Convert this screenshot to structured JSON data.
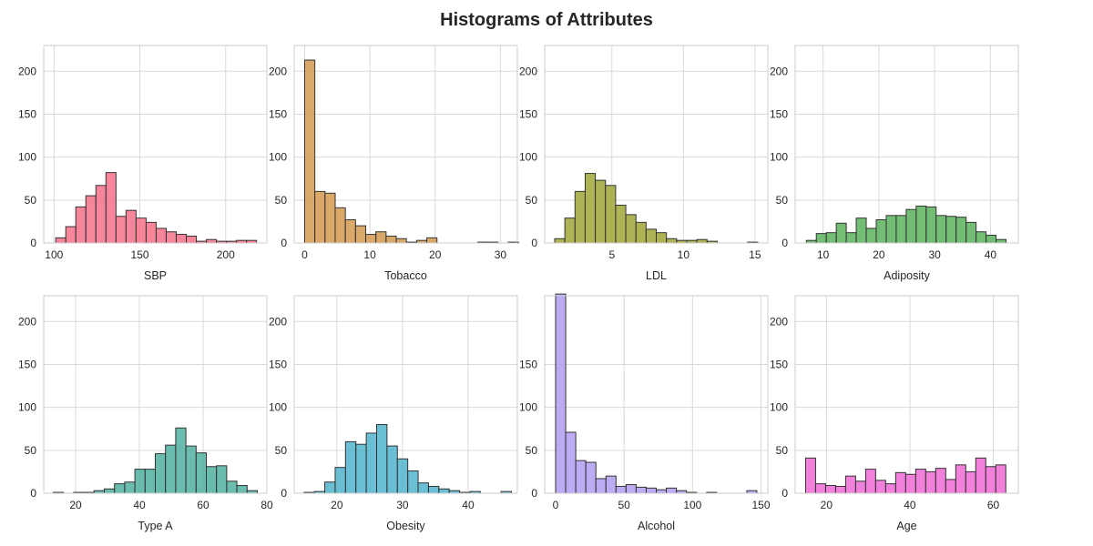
{
  "figure_title": "Histograms of Attributes",
  "chart_data": [
    {
      "type": "bar",
      "subtype": "histogram",
      "xlabel": "SBP",
      "color": "#f77189",
      "ylim": [
        0,
        230
      ],
      "yticks": [
        0,
        50,
        100,
        150,
        200
      ],
      "xlim": [
        94,
        224
      ],
      "xticks": [
        100,
        150,
        200
      ],
      "bin_start": 101,
      "bin_width": 5.85,
      "values": [
        6,
        19,
        42,
        55,
        67,
        82,
        31,
        38,
        29,
        24,
        17,
        13,
        10,
        8,
        2,
        4,
        2,
        2,
        3,
        3
      ],
      "grid": true
    },
    {
      "type": "bar",
      "subtype": "histogram",
      "xlabel": "Tobacco",
      "color": "#d39a4f",
      "ylim": [
        0,
        230
      ],
      "yticks": [
        0,
        50,
        100,
        150,
        200
      ],
      "xlim": [
        -1.6,
        32.6
      ],
      "xticks": [
        0,
        10,
        20,
        30
      ],
      "bin_start": 0,
      "bin_width": 1.56,
      "values": [
        213,
        60,
        58,
        41,
        27,
        20,
        10,
        13,
        8,
        5,
        1,
        3,
        6,
        0,
        0,
        0,
        0,
        1,
        1,
        0,
        1
      ],
      "grid": true
    },
    {
      "type": "bar",
      "subtype": "histogram",
      "xlabel": "LDL",
      "color": "#a0a737",
      "ylim": [
        0,
        230
      ],
      "yticks": [
        0,
        50,
        100,
        150,
        200
      ],
      "xlim": [
        0.3,
        15.9
      ],
      "xticks": [
        5,
        10,
        15
      ],
      "bin_start": 1,
      "bin_width": 0.71,
      "values": [
        5,
        29,
        60,
        81,
        73,
        67,
        44,
        33,
        24,
        16,
        12,
        5,
        3,
        3,
        4,
        2,
        0,
        0,
        0,
        1
      ],
      "grid": true
    },
    {
      "type": "bar",
      "subtype": "histogram",
      "xlabel": "Adiposity",
      "color": "#5bb25c",
      "ylim": [
        0,
        230
      ],
      "yticks": [
        0,
        50,
        100,
        150,
        200
      ],
      "xlim": [
        5,
        45
      ],
      "xticks": [
        10,
        20,
        30,
        40
      ],
      "bin_start": 7,
      "bin_width": 1.79,
      "values": [
        3,
        11,
        12,
        23,
        12,
        29,
        17,
        27,
        32,
        32,
        39,
        43,
        42,
        32,
        31,
        30,
        24,
        13,
        9,
        4
      ],
      "grid": true
    },
    {
      "type": "bar",
      "subtype": "histogram",
      "xlabel": "Type A",
      "color": "#4fb0a0",
      "ylim": [
        0,
        230
      ],
      "yticks": [
        0,
        50,
        100,
        150,
        200
      ],
      "xlim": [
        10,
        80
      ],
      "xticks": [
        20,
        40,
        60,
        80
      ],
      "bin_start": 13,
      "bin_width": 3.2,
      "values": [
        1,
        0,
        1,
        1,
        3,
        5,
        11,
        13,
        28,
        28,
        46,
        56,
        76,
        55,
        47,
        31,
        32,
        14,
        9,
        3
      ],
      "grid": true
    },
    {
      "type": "bar",
      "subtype": "histogram",
      "xlabel": "Obesity",
      "color": "#51b4cd",
      "ylim": [
        0,
        230
      ],
      "yticks": [
        0,
        50,
        100,
        150,
        200
      ],
      "xlim": [
        13.5,
        47.5
      ],
      "xticks": [
        20,
        30,
        40
      ],
      "bin_start": 15,
      "bin_width": 1.58,
      "values": [
        1,
        2,
        13,
        30,
        60,
        57,
        70,
        80,
        55,
        40,
        26,
        12,
        8,
        5,
        3,
        1,
        2,
        0,
        0,
        2
      ],
      "grid": true
    },
    {
      "type": "bar",
      "subtype": "histogram",
      "xlabel": "Alcohol",
      "color": "#b19ef2",
      "ylim": [
        0,
        230
      ],
      "yticks": [
        0,
        50,
        100,
        150
      ],
      "xlim": [
        -8,
        155
      ],
      "xticks": [
        0,
        50,
        100,
        150
      ],
      "bin_start": 0,
      "bin_width": 7.35,
      "values": [
        232,
        71,
        38,
        36,
        17,
        20,
        8,
        10,
        7,
        6,
        4,
        6,
        3,
        1,
        0,
        1,
        0,
        0,
        0,
        3
      ],
      "grid": true
    },
    {
      "type": "bar",
      "subtype": "histogram",
      "xlabel": "Age",
      "color": "#f06bd6",
      "ylim": [
        0,
        230
      ],
      "yticks": [
        0,
        50,
        100,
        150,
        200
      ],
      "xlim": [
        12.5,
        66
      ],
      "xticks": [
        20,
        40,
        60
      ],
      "bin_start": 15,
      "bin_width": 2.4,
      "values": [
        41,
        11,
        9,
        8,
        20,
        14,
        28,
        15,
        11,
        24,
        22,
        28,
        25,
        29,
        16,
        33,
        25,
        41,
        31,
        33
      ],
      "grid": true
    }
  ]
}
